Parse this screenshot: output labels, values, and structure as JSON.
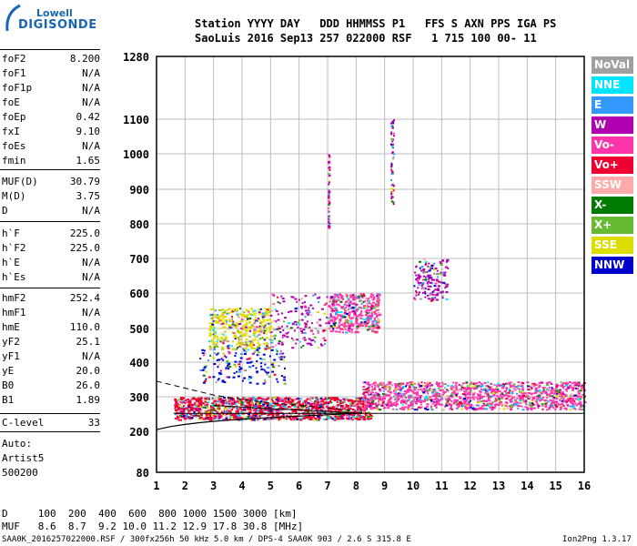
{
  "logo": {
    "line1": "Lowell",
    "line2": "DIGISONDE"
  },
  "header": {
    "line1": "Station YYYY DAY   DDD HHMMSS P1   FFS S AXN PPS IGA PS",
    "line2": "SaoLuis 2016 Sep13 257 022000 RSF   1 715 100 00- 11"
  },
  "params": {
    "group1": [
      {
        "name": "foF2",
        "value": "8.200"
      },
      {
        "name": "foF1",
        "value": "N/A"
      },
      {
        "name": "foF1p",
        "value": "N/A"
      },
      {
        "name": "foE",
        "value": "N/A"
      },
      {
        "name": "foEp",
        "value": "0.42"
      },
      {
        "name": "fxI",
        "value": "9.10"
      },
      {
        "name": "foEs",
        "value": "N/A"
      },
      {
        "name": "fmin",
        "value": "1.65"
      }
    ],
    "group2": [
      {
        "name": "MUF(D)",
        "value": "30.79"
      },
      {
        "name": "M(D)",
        "value": "3.75"
      },
      {
        "name": "D",
        "value": "N/A"
      }
    ],
    "group3": [
      {
        "name": "h`F",
        "value": "225.0"
      },
      {
        "name": "h`F2",
        "value": "225.0"
      },
      {
        "name": "h`E",
        "value": "N/A"
      },
      {
        "name": "h`Es",
        "value": "N/A"
      }
    ],
    "group4": [
      {
        "name": "hmF2",
        "value": "252.4"
      },
      {
        "name": "hmF1",
        "value": "N/A"
      },
      {
        "name": "hmE",
        "value": "110.0"
      },
      {
        "name": "yF2",
        "value": "25.1"
      },
      {
        "name": "yF1",
        "value": "N/A"
      },
      {
        "name": "yE",
        "value": "20.0"
      },
      {
        "name": "B0",
        "value": "26.0"
      },
      {
        "name": "B1",
        "value": "1.89"
      }
    ],
    "clevel": {
      "name": "C-level",
      "value": "33"
    },
    "auto": [
      "Auto:",
      "Artist5",
      "500200"
    ]
  },
  "legend": [
    {
      "label": "NoVal",
      "color": "#a0a0a0"
    },
    {
      "label": "NNE",
      "color": "#00e5ff"
    },
    {
      "label": "E",
      "color": "#3399ff"
    },
    {
      "label": "W",
      "color": "#b000b0"
    },
    {
      "label": "Vo-",
      "color": "#ff33aa"
    },
    {
      "label": "Vo+",
      "color": "#ee0033"
    },
    {
      "label": "SSW",
      "color": "#ffaaaa"
    },
    {
      "label": "X-",
      "color": "#007a00"
    },
    {
      "label": "X+",
      "color": "#66bb33"
    },
    {
      "label": "SSE",
      "color": "#dddd00"
    },
    {
      "label": "NNW",
      "color": "#0000cc"
    }
  ],
  "bottom": {
    "d_row": "D     100  200  400  600  800 1000 1500 3000 [km]",
    "muf_row": "MUF   8.6  8.7  9.2 10.0 11.2 12.9 17.8 30.8 [MHz]",
    "footer_left": "SAA0K_2016257022000.RSF / 300fx256h 50 kHz 5.0 km / DPS-4 SAA0K 903 / 2.6 S 315.8 E",
    "footer_right": "Ion2Png 1.3.17"
  },
  "chart_data": {
    "type": "scatter",
    "xlim": [
      1,
      16
    ],
    "x_ticks": [
      "1",
      "2",
      "3",
      "4",
      "5",
      "6",
      "7",
      "8",
      "9",
      "10",
      "11",
      "12",
      "13",
      "14",
      "15",
      "16"
    ],
    "y_ticks": [
      "80",
      "200",
      "300",
      "400",
      "500",
      "600",
      "700",
      "800",
      "900",
      "1000",
      "1100",
      "1280"
    ],
    "y_tick_values": [
      80,
      200,
      300,
      400,
      500,
      600,
      700,
      800,
      900,
      1000,
      1100,
      1280
    ],
    "y_scale": "nonlinear",
    "profile_curve": {
      "x": [
        1.0,
        1.5,
        2.0,
        2.5,
        3.0,
        3.5,
        4.0,
        5.0,
        6.0,
        7.0,
        8.0,
        8.2
      ],
      "y": [
        205,
        214,
        220,
        225,
        229,
        232,
        235,
        240,
        244,
        248,
        252,
        253
      ]
    },
    "foF2_line": {
      "x": [
        1.6,
        16
      ],
      "y": [
        252,
        252
      ]
    },
    "dashed_curve": {
      "x": [
        1.0,
        2.0,
        3.0,
        4.0,
        5.0,
        6.0,
        7.0,
        8.0
      ],
      "y": [
        345,
        325,
        305,
        292,
        282,
        275,
        268,
        260
      ]
    },
    "reference_curve": {
      "x": [
        3.0,
        4.0,
        5.0,
        6.0,
        7.0,
        8.0
      ],
      "y": [
        275,
        270,
        265,
        262,
        258,
        252
      ]
    },
    "clusters": [
      {
        "x": [
          1.6,
          8.5
        ],
        "y": [
          235,
          300
        ],
        "density": "high",
        "dominant": "Vo+"
      },
      {
        "x": [
          8.2,
          16
        ],
        "y": [
          265,
          345
        ],
        "density": "high",
        "dominant": "Vo-"
      },
      {
        "x": [
          2.8,
          5.0
        ],
        "y": [
          440,
          560
        ],
        "density": "medium",
        "dominant": "SSE"
      },
      {
        "x": [
          5.0,
          7.0
        ],
        "y": [
          445,
          600
        ],
        "density": "low",
        "dominant": "W"
      },
      {
        "x": [
          7.0,
          8.8
        ],
        "y": [
          490,
          600
        ],
        "density": "medium",
        "dominant": "Vo-"
      },
      {
        "x": [
          10.0,
          11.2
        ],
        "y": [
          580,
          700
        ],
        "density": "low",
        "dominant": "W"
      },
      {
        "x": [
          2.5,
          5.5
        ],
        "y": [
          340,
          440
        ],
        "density": "low",
        "dominant": "NNW"
      },
      {
        "x": [
          9.2,
          9.3
        ],
        "y": [
          860,
          1100
        ],
        "density": "line",
        "dominant": "W"
      },
      {
        "x": [
          7.0,
          7.05
        ],
        "y": [
          790,
          1000
        ],
        "density": "line",
        "dominant": "W"
      }
    ]
  }
}
